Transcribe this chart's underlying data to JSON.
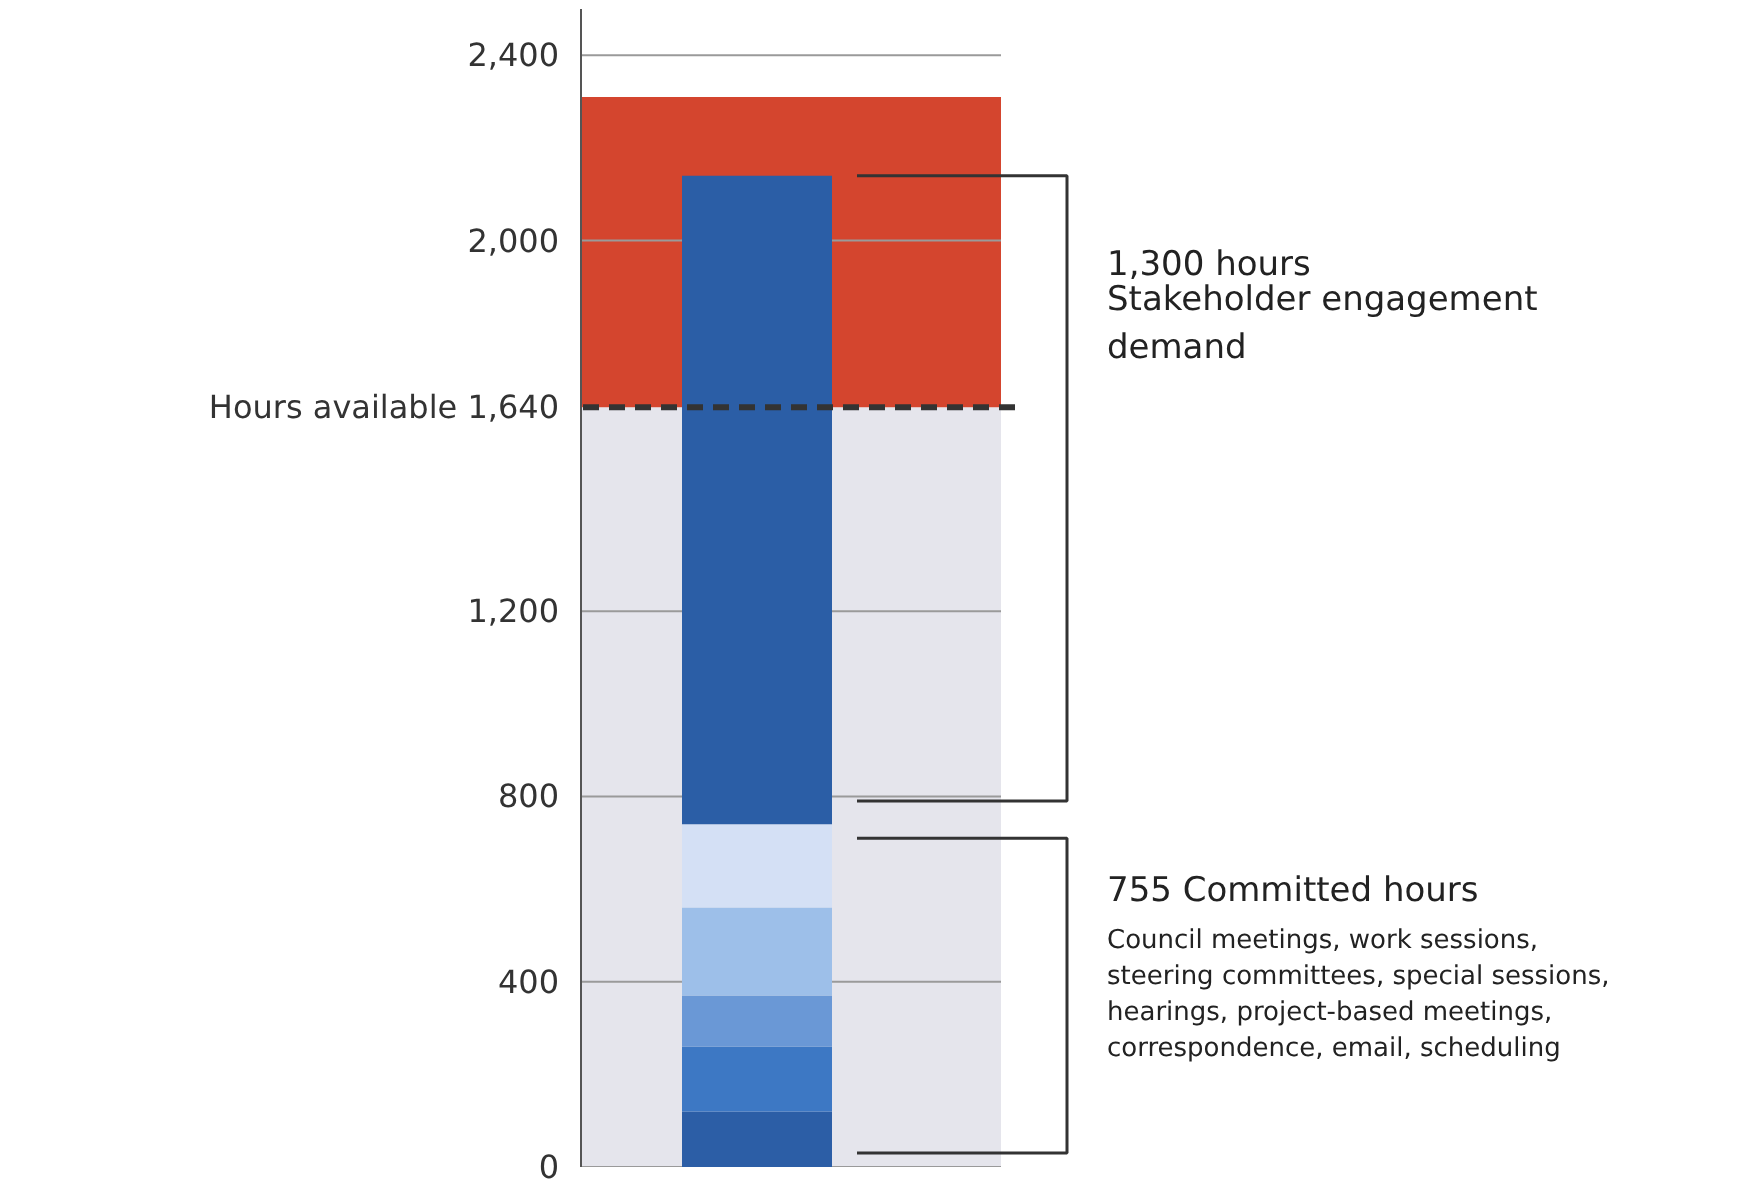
{
  "chart_data": {
    "type": "bar",
    "stacked": true,
    "categories": [
      null
    ],
    "series": [
      {
        "color": "#2c5ea6",
        "values": [
          120
        ]
      },
      {
        "color": "#3d78c4",
        "values": [
          140
        ]
      },
      {
        "color": "#6a98d6",
        "values": [
          110
        ]
      },
      {
        "color": "#9dbfe9",
        "values": [
          190
        ]
      },
      {
        "color": "#d4e0f5",
        "values": [
          180
        ]
      },
      {
        "color": "#2b5ea6",
        "values": [
          1400
        ]
      }
    ],
    "ylim": [
      0,
      2500
    ],
    "yticks": [
      0,
      400,
      800,
      {
        "value": 1200,
        "label": "1,200"
      },
      {
        "value": 2000,
        "label": "2,000"
      },
      {
        "value": 2400,
        "label": "2,400"
      }
    ],
    "grid": "y",
    "bands": [
      {
        "axis": "y",
        "from": 0,
        "to": 1640,
        "color": "#e5e5ec"
      },
      {
        "axis": "y",
        "from": 1640,
        "to": 2310,
        "color": "#d4452e"
      }
    ],
    "ref_lines": [
      {
        "axis": "y",
        "value": 1640,
        "label": "Hours available 1,640",
        "line_style": "dashed",
        "color": "#333333"
      }
    ],
    "annotations": [
      "1,300 hours",
      "Stakeholder engagement\ndemand",
      "755 Committed hours",
      "Council meetings, work sessions,\nsteering committees, special sessions,\nhearings, project-based meetings,\ncorrespondence, email, scheduling"
    ]
  }
}
